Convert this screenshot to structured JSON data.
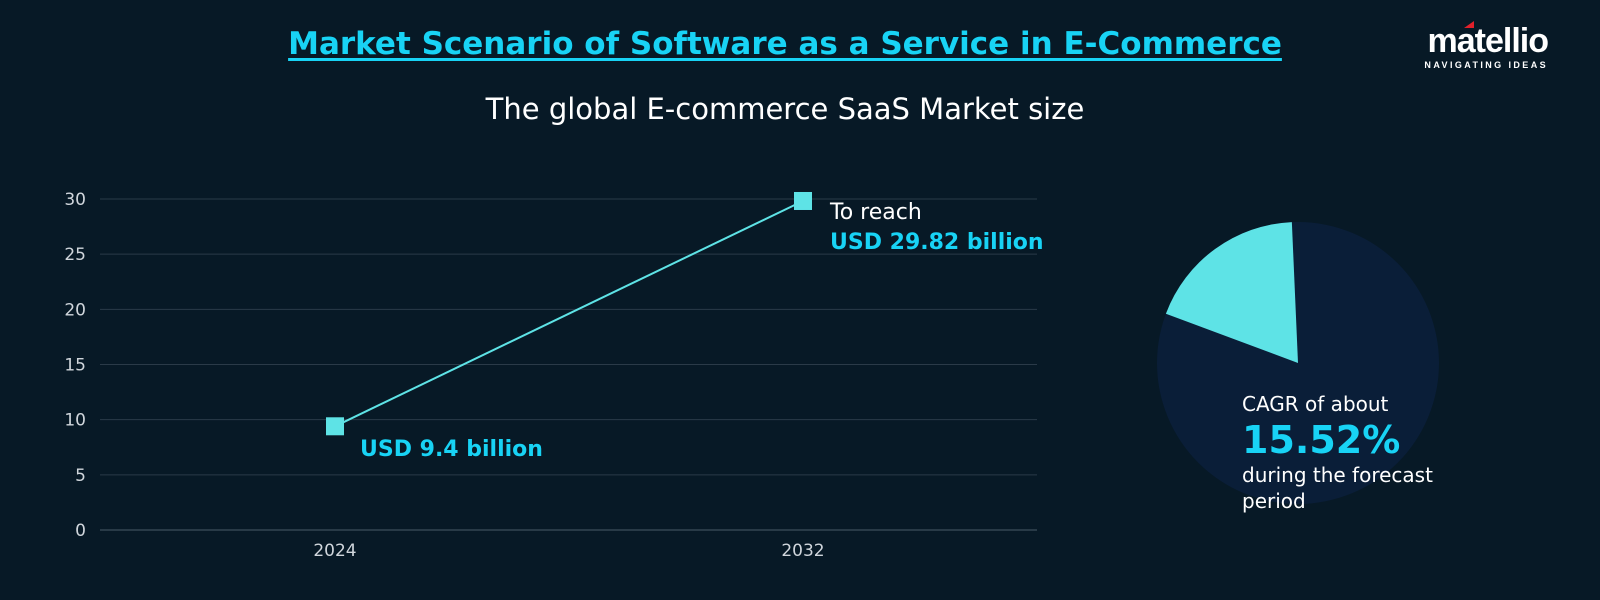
{
  "header": {
    "title": "Market Scenario of Software as a Service in E-Commerce",
    "subtitle": "The global E-commerce SaaS Market size"
  },
  "logo": {
    "name": "matellio",
    "tagline": "NAVIGATING IDEAS"
  },
  "colors": {
    "background": "#071926",
    "accent": "#18d3f5",
    "line": "#5ee3e6",
    "pie_base": "#0a1e38",
    "grid": "#2a3a48"
  },
  "chart_data": [
    {
      "type": "line",
      "categories": [
        "2024",
        "2032"
      ],
      "values": [
        9.4,
        29.82
      ],
      "ylim": [
        0,
        30
      ],
      "yticks": [
        0,
        5,
        10,
        15,
        20,
        25,
        30
      ],
      "grid": true,
      "annotations": [
        {
          "label": "USD 9.4 billion"
        },
        {
          "prefix": "To reach",
          "label": "USD 29.82 billion"
        }
      ]
    },
    {
      "type": "pie",
      "values": [
        15.52,
        84.48
      ],
      "annotation": {
        "prefix": "CAGR of about",
        "value": "15.52%",
        "suffix": "during the forecast period"
      }
    }
  ]
}
